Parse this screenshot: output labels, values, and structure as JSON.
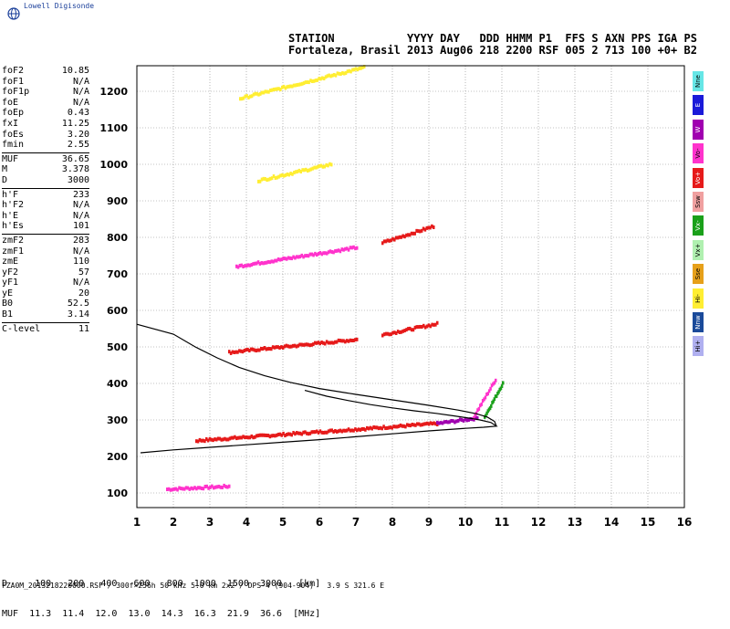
{
  "logo": {
    "text": "Lowell Digisonde"
  },
  "header": {
    "line1": "STATION           YYYY DAY   DDD HHMM P1  FFS S AXN PPS IGA PS",
    "line2": "Fortaleza, Brasil 2013 Aug06 218 2200 RSF 005 2 713 100 +0+ B2"
  },
  "params": {
    "group1": [
      {
        "label": "foF2",
        "value": "10.85"
      },
      {
        "label": "foF1",
        "value": "N/A"
      },
      {
        "label": "foF1p",
        "value": "N/A"
      },
      {
        "label": "foE",
        "value": "N/A"
      },
      {
        "label": "foEp",
        "value": "0.43"
      },
      {
        "label": "fxI",
        "value": "11.25"
      },
      {
        "label": "foEs",
        "value": "3.20"
      },
      {
        "label": "fmin",
        "value": "2.55"
      }
    ],
    "group2": [
      {
        "label": "MUF",
        "value": "36.65"
      },
      {
        "label": "M",
        "value": "3.378"
      },
      {
        "label": "D",
        "value": "3000"
      }
    ],
    "group3": [
      {
        "label": "h'F",
        "value": "233"
      },
      {
        "label": "h'F2",
        "value": "N/A"
      },
      {
        "label": "h'E",
        "value": "N/A"
      },
      {
        "label": "h'Es",
        "value": "101"
      }
    ],
    "group4": [
      {
        "label": "zmF2",
        "value": "283"
      },
      {
        "label": "zmF1",
        "value": "N/A"
      },
      {
        "label": "zmE",
        "value": "110"
      },
      {
        "label": "yF2",
        "value": "57"
      },
      {
        "label": "yF1",
        "value": "N/A"
      },
      {
        "label": "yE",
        "value": "20"
      },
      {
        "label": "B0",
        "value": "52.5"
      },
      {
        "label": "B1",
        "value": "3.14"
      }
    ],
    "group5": [
      {
        "label": "C-level",
        "value": "11"
      }
    ]
  },
  "legend": [
    {
      "label": "Nne",
      "color": "#66e6e6"
    },
    {
      "label": "E",
      "color": "#1a1ad9"
    },
    {
      "label": "W",
      "color": "#a000b0"
    },
    {
      "label": "Vo-",
      "color": "#ff33cc"
    },
    {
      "label": "Vo+",
      "color": "#e61a1a"
    },
    {
      "label": "Ssw",
      "color": "#f0a0a0"
    },
    {
      "label": "Vx-",
      "color": "#1aa01a"
    },
    {
      "label": "Vx+",
      "color": "#b0f0b0"
    },
    {
      "label": "Sse",
      "color": "#e6a01a"
    },
    {
      "label": "Hi-",
      "color": "#ffee33"
    },
    {
      "label": "Nnw",
      "color": "#1a4a9a"
    },
    {
      "label": "Hi+",
      "color": "#b0b0f0"
    }
  ],
  "muf_table": {
    "d_row": "D     100   200   400   600   800  1000  1500  3000   [km]",
    "muf_row": "MUF  11.3  11.4  12.0  13.0  14.3  16.3  21.9  36.6  [MHz]"
  },
  "footer": "FZA0M_2013218220000.RSF / 300f×256h 50 kHz 5.0 km 2x2 / DPS-4 (904-904)   3.9 S 321.6 E",
  "chart_data": {
    "type": "scatter",
    "x_ticks": [
      1,
      2,
      3,
      4,
      5,
      6,
      7,
      8,
      9,
      10,
      11,
      12,
      13,
      14,
      15,
      16
    ],
    "y_ticks": [
      100,
      200,
      300,
      400,
      500,
      600,
      700,
      800,
      900,
      1000,
      1100,
      1200
    ],
    "xlim": [
      1,
      16
    ],
    "ylim": [
      60,
      1270
    ],
    "grid": true,
    "profile": [
      [
        10.85,
        283
      ],
      [
        10.8,
        296
      ],
      [
        10.6,
        308
      ],
      [
        10.3,
        317
      ],
      [
        9.8,
        327
      ],
      [
        9.0,
        340
      ],
      [
        8.0,
        355
      ],
      [
        7.0,
        370
      ],
      [
        6.0,
        386
      ],
      [
        5.2,
        403
      ],
      [
        4.5,
        421
      ],
      [
        3.8,
        444
      ],
      [
        3.2,
        470
      ],
      [
        2.6,
        500
      ],
      [
        2.0,
        535
      ],
      [
        1.0,
        562
      ]
    ],
    "virtual_height": [
      [
        1.1,
        210
      ],
      [
        2.0,
        218
      ],
      [
        3.0,
        225
      ],
      [
        4.0,
        232
      ],
      [
        5.0,
        239
      ],
      [
        6.0,
        246
      ],
      [
        7.0,
        254
      ],
      [
        8.0,
        262
      ],
      [
        9.0,
        270
      ],
      [
        10.0,
        277
      ],
      [
        10.5,
        280
      ],
      [
        10.85,
        283
      ],
      [
        10.7,
        293
      ],
      [
        10.4,
        300
      ],
      [
        10.1,
        305
      ],
      [
        9.7,
        311
      ],
      [
        9.2,
        318
      ],
      [
        8.6,
        325
      ],
      [
        8.0,
        333
      ],
      [
        7.4,
        342
      ],
      [
        6.8,
        353
      ],
      [
        6.2,
        365
      ],
      [
        5.6,
        381
      ]
    ],
    "traces": [
      {
        "f": [
          1.8,
          3.5
        ],
        "h": [
          110,
          118
        ],
        "color": "#ff33cc"
      },
      {
        "f": [
          2.6,
          9.2
        ],
        "h": [
          243,
          290
        ],
        "color": "#e61a1a"
      },
      {
        "f": [
          9.2,
          10.3
        ],
        "h": [
          290,
          305
        ],
        "color": "#a000b0"
      },
      {
        "f": [
          10.2,
          10.8
        ],
        "h": [
          308,
          410
        ],
        "color": "#ff33cc"
      },
      {
        "f": [
          10.5,
          11.0
        ],
        "h": [
          308,
          400
        ],
        "color": "#1aa01a"
      },
      {
        "f": [
          3.5,
          7.0
        ],
        "h": [
          485,
          520
        ],
        "color": "#e61a1a"
      },
      {
        "f": [
          7.7,
          9.2
        ],
        "h": [
          533,
          563
        ],
        "color": "#e61a1a"
      },
      {
        "f": [
          3.7,
          7.0
        ],
        "h": [
          720,
          772
        ],
        "color": "#ff33cc"
      },
      {
        "f": [
          7.7,
          9.1
        ],
        "h": [
          785,
          830
        ],
        "color": "#e61a1a"
      },
      {
        "f": [
          4.3,
          6.3
        ],
        "h": [
          955,
          1000
        ],
        "color": "#ffee33"
      },
      {
        "f": [
          3.8,
          7.2
        ],
        "h": [
          1180,
          1265
        ],
        "color": "#ffee33"
      }
    ]
  }
}
